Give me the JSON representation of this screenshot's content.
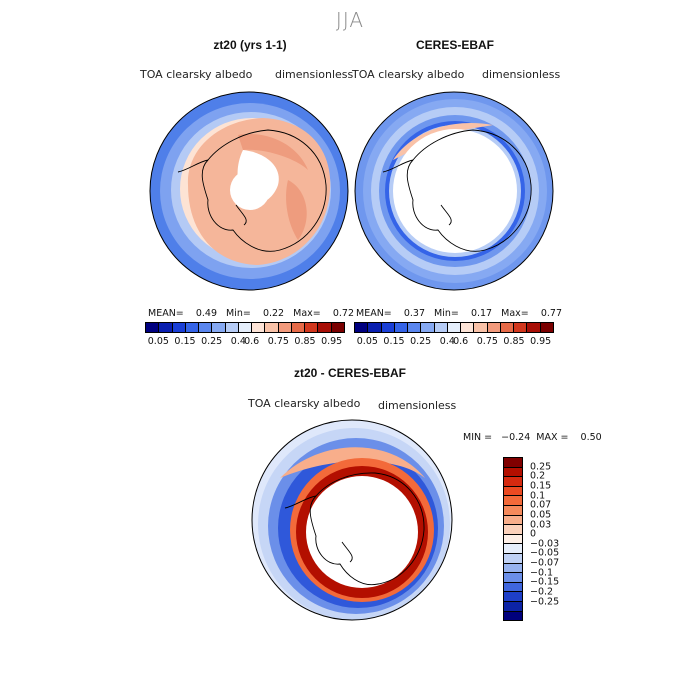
{
  "season": "JJA",
  "colors": {
    "abs_scale": [
      "#000080",
      "#0a1fb0",
      "#1a3fd6",
      "#3564e8",
      "#5a86ee",
      "#86a9f2",
      "#b6ccf6",
      "#e5eefb",
      "#fde4d7",
      "#f9c2a8",
      "#f29a7c",
      "#e66a48",
      "#d2371d",
      "#a80f06",
      "#7a0000"
    ],
    "diff_scale": [
      "#800000",
      "#b30f00",
      "#d62a10",
      "#ec4a22",
      "#f36a3a",
      "#f58a5c",
      "#f8ae8b",
      "#fbd1bb",
      "#fdefe7",
      "#e6eefb",
      "#bfd1f5",
      "#97b3ef",
      "#6b8fe9",
      "#3f66de",
      "#1e3fc9",
      "#0c23a6",
      "#00007c"
    ]
  },
  "panels": [
    {
      "title": "zt20 (yrs 1-1)",
      "left_label": "TOA clearsky albedo",
      "right_label": "dimensionless",
      "stats": "MEAN=    0.49   Min=    0.22   Max=    0.72",
      "ticks": [
        "0.05",
        "0.15",
        "0.25",
        "0.4",
        "0.6",
        "0.75",
        "0.85",
        "0.95"
      ]
    },
    {
      "title": "CERES-EBAF",
      "left_label": "TOA clearsky albedo",
      "right_label": "dimensionless",
      "stats": "MEAN=    0.37   Min=    0.17   Max=    0.77",
      "ticks": [
        "0.05",
        "0.15",
        "0.25",
        "0.4",
        "0.6",
        "0.75",
        "0.85",
        "0.95"
      ]
    }
  ],
  "diff": {
    "title": "zt20 - CERES-EBAF",
    "left_label": "TOA clearsky albedo",
    "right_label": "dimensionless",
    "minmax": "MIN =   −0.24  MAX =    0.50",
    "ticks": [
      "0.25",
      "0.2",
      "0.15",
      "0.1",
      "0.07",
      "0.05",
      "0.03",
      "0",
      "−0.03",
      "−0.05",
      "−0.07",
      "−0.1",
      "−0.15",
      "−0.2",
      "−0.25"
    ]
  }
}
